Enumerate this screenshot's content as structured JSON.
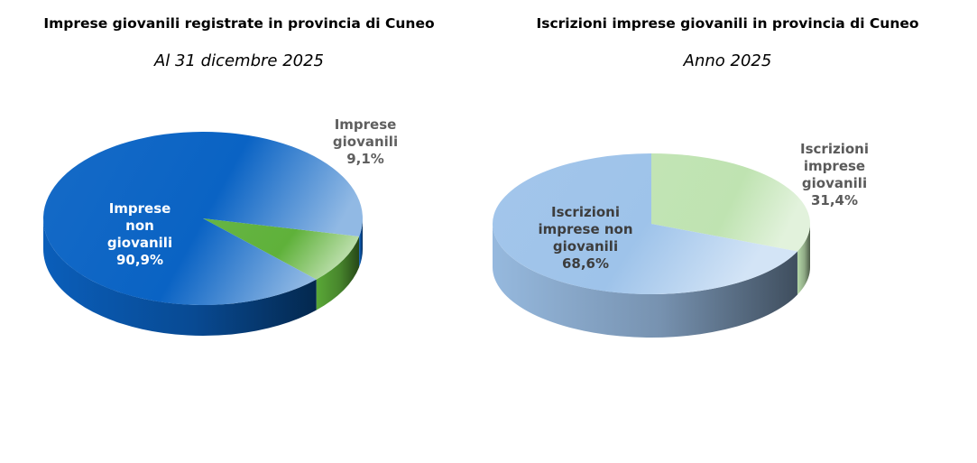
{
  "chart_data": [
    {
      "type": "pie",
      "title": "Imprese giovanili registrate in provincia di Cuneo",
      "subtitle": "Al 31 dicembre 2025",
      "slices": [
        {
          "label_lines": [
            "Imprese",
            "giovanili",
            "9,1%"
          ],
          "value": 9.1,
          "color": "#5fb13a"
        },
        {
          "label_lines": [
            "Imprese",
            "non",
            "giovanili",
            "90,9%"
          ],
          "value": 90.9,
          "color": "#0a63c4"
        }
      ]
    },
    {
      "type": "pie",
      "title": "Iscrizioni imprese giovanili in provincia di Cuneo",
      "subtitle": "Anno 2025",
      "slices": [
        {
          "label_lines": [
            "Iscrizioni",
            "imprese",
            "giovanili",
            "31,4%"
          ],
          "value": 31.4,
          "color": "#bfe3b1"
        },
        {
          "label_lines": [
            "Iscrizioni",
            "imprese non",
            "giovanili",
            "68,6%"
          ],
          "value": 68.6,
          "color": "#9ec3ea"
        }
      ]
    }
  ]
}
